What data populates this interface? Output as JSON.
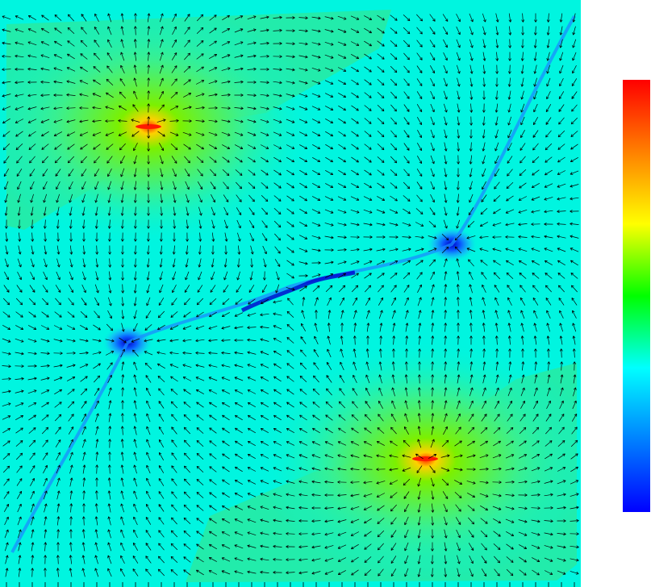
{
  "figure": {
    "field": {
      "background": "#00f5e0",
      "arrow_color": "#000000",
      "defects": [
        {
          "kind": "source",
          "peak": "#ff2a00"
        },
        {
          "kind": "source",
          "peak": "#ff2a00"
        },
        {
          "kind": "sink",
          "peak": "#0000ff"
        },
        {
          "kind": "sink",
          "peak": "#0000ff"
        }
      ]
    },
    "colorbar": {
      "colors": [
        "#ff0000",
        "#ff8000",
        "#ffff00",
        "#00ff00",
        "#00ffff",
        "#0080ff",
        "#0000ff"
      ]
    }
  }
}
